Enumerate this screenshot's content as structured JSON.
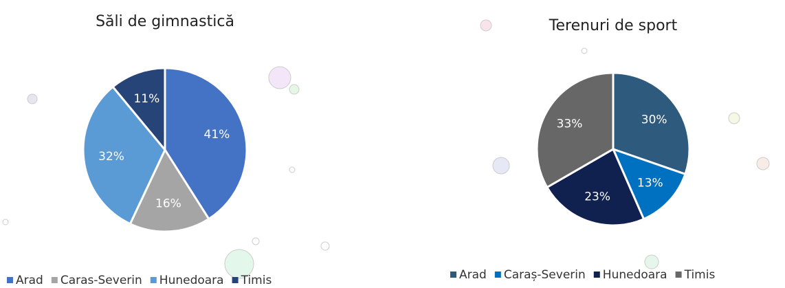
{
  "chart_data": [
    {
      "type": "pie",
      "title": "Săli de gimnastică",
      "categories": [
        "Arad",
        "Caras-Severin",
        "Hunedoara",
        "Timis"
      ],
      "values": [
        41,
        16,
        32,
        11
      ],
      "value_labels": [
        "41%",
        "16%",
        "32%",
        "11%"
      ],
      "colors": [
        "#4472c4",
        "#a5a5a5",
        "#5b9bd5",
        "#264478"
      ]
    },
    {
      "type": "pie",
      "title": "Terenuri de sport",
      "categories": [
        "Arad",
        "Caraș-Severin",
        "Hunedoara",
        "Timis"
      ],
      "values": [
        30,
        13,
        23,
        33
      ],
      "value_labels": [
        "30%",
        "13%",
        "23%",
        "33%"
      ],
      "colors": [
        "#2e5a7e",
        "#0070c0",
        "#10204f",
        "#676767"
      ]
    }
  ]
}
